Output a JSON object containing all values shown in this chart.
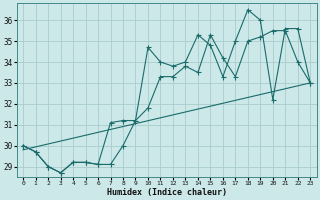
{
  "xlabel": "Humidex (Indice chaleur)",
  "background_color": "#cce8e8",
  "grid_color": "#aacccc",
  "line_color": "#1a6b6b",
  "xlim": [
    -0.5,
    23.5
  ],
  "ylim": [
    28.5,
    36.8
  ],
  "yticks": [
    29,
    30,
    31,
    32,
    33,
    34,
    35,
    36
  ],
  "xticks": [
    0,
    1,
    2,
    3,
    4,
    5,
    6,
    7,
    8,
    9,
    10,
    11,
    12,
    13,
    14,
    15,
    16,
    17,
    18,
    19,
    20,
    21,
    22,
    23
  ],
  "line1_x": [
    0,
    1,
    2,
    3,
    4,
    5,
    6,
    7,
    8,
    9,
    10,
    11,
    12,
    13,
    14,
    15,
    16,
    17,
    18,
    19,
    20,
    21,
    22,
    23
  ],
  "line1_y": [
    30.0,
    29.7,
    29.0,
    28.7,
    29.2,
    29.2,
    29.1,
    29.1,
    30.0,
    31.2,
    31.8,
    33.3,
    33.3,
    33.8,
    33.5,
    35.3,
    34.2,
    33.3,
    35.0,
    35.2,
    35.5,
    35.5,
    34.0,
    33.0
  ],
  "line2_x": [
    0,
    1,
    2,
    3,
    4,
    5,
    6,
    7,
    8,
    9,
    10,
    11,
    12,
    13,
    14,
    15,
    16,
    17,
    18,
    19,
    20,
    21,
    22,
    23
  ],
  "line2_y": [
    30.0,
    29.7,
    29.0,
    28.7,
    29.2,
    29.2,
    29.1,
    31.1,
    31.2,
    31.2,
    34.7,
    34.0,
    33.8,
    34.0,
    35.3,
    34.8,
    33.3,
    35.0,
    36.5,
    36.0,
    32.2,
    35.6,
    35.6,
    33.0
  ],
  "line3_x": [
    0,
    23
  ],
  "line3_y": [
    29.8,
    33.0
  ]
}
